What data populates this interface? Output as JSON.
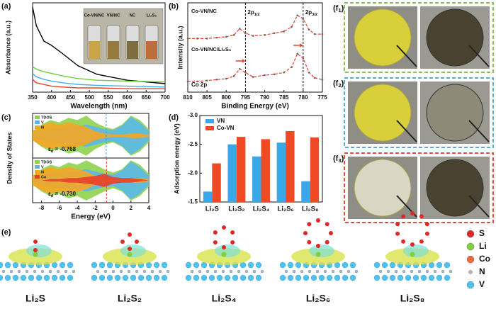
{
  "panels": {
    "a": "(a)",
    "b": "(b)",
    "c": "(c)",
    "d": "(d)",
    "e": "(e)",
    "f": [
      {
        "main": "(f",
        "sub": "1",
        "end": ")",
        "color": "#8cc152"
      },
      {
        "main": "(f",
        "sub": "2",
        "end": ")",
        "color": "#5aa9d6"
      },
      {
        "main": "(f",
        "sub": "3",
        "end": ")",
        "color": "#e0503a"
      }
    ]
  },
  "chart_data": [
    {
      "type": "line",
      "xlabel": "Wavelength (nm)",
      "ylabel": "Absorbance (a.u.)",
      "x": [
        350,
        360,
        380,
        400,
        430,
        470,
        520,
        600,
        700
      ],
      "xlim": [
        350,
        700
      ],
      "xticks": [
        350,
        400,
        450,
        500,
        550,
        600,
        650,
        700
      ],
      "ylim": [
        0,
        1.05
      ],
      "series": [
        {
          "name": "Li₂S₆",
          "color": "#000000",
          "values": [
            1.0,
            0.78,
            0.6,
            0.55,
            0.45,
            0.31,
            0.21,
            0.14,
            0.1
          ]
        },
        {
          "name": "NC",
          "color": "#6ccf3a",
          "values": [
            0.3,
            0.27,
            0.24,
            0.22,
            0.19,
            0.16,
            0.14,
            0.13,
            0.12
          ]
        },
        {
          "name": "VN/NC",
          "color": "#3ab0e6",
          "values": [
            0.22,
            0.18,
            0.15,
            0.13,
            0.11,
            0.09,
            0.08,
            0.07,
            0.06
          ]
        },
        {
          "name": "Co-VN/NC",
          "color": "#e8402a",
          "values": [
            0.15,
            0.11,
            0.09,
            0.07,
            0.06,
            0.05,
            0.05,
            0.04,
            0.04
          ]
        }
      ]
    },
    {
      "type": "xps",
      "xlabel": "Binding Energy (eV)",
      "ylabel": "Intensity (a.u.)",
      "annotation": "Co 2p",
      "x": [
        810,
        807.5,
        805,
        802.5,
        800,
        798,
        796.5,
        795,
        793,
        790,
        787.5,
        785,
        783,
        781.5,
        780,
        778.5,
        777,
        775
      ],
      "xlim": [
        810,
        775
      ],
      "xticks": [
        810,
        805,
        800,
        795,
        790,
        785,
        780,
        775
      ],
      "ylim": [
        0,
        1
      ],
      "series": [
        {
          "name": "Co-VN/NC",
          "color": "#e8402a",
          "values": [
            0.6,
            0.6,
            0.6,
            0.61,
            0.62,
            0.64,
            0.71,
            0.66,
            0.63,
            0.64,
            0.66,
            0.68,
            0.73,
            0.86,
            0.82,
            0.7,
            0.65,
            0.65
          ]
        },
        {
          "name": "Co-VN/NC/Li₂S₆",
          "color": "#e8402a",
          "values": [
            0.12,
            0.12,
            0.13,
            0.14,
            0.15,
            0.18,
            0.26,
            0.22,
            0.17,
            0.19,
            0.2,
            0.22,
            0.28,
            0.43,
            0.38,
            0.22,
            0.16,
            0.14
          ]
        }
      ],
      "ref_lines": [
        795,
        780
      ],
      "peak_labels": [
        {
          "main": "2p",
          "sub": "1/2"
        },
        {
          "main": "2p",
          "sub": "3/2"
        }
      ]
    },
    {
      "type": "dos",
      "xlabel": "Energy (eV)",
      "ylabel": "Density of States",
      "xlim": [
        -9,
        4
      ],
      "xticks": [
        -8,
        -6,
        -4,
        -2,
        0,
        2,
        4
      ],
      "x": [
        -9,
        -8,
        -7,
        -6,
        -5,
        -4,
        -3,
        -2,
        -1,
        0,
        1,
        2,
        3,
        4
      ],
      "panels": [
        {
          "ylim": [
            -1,
            1
          ],
          "ed": {
            "symbol": "ε",
            "sub": "d",
            "label": " = -0.768",
            "value": -0.768,
            "color": "#2aa7d8"
          },
          "series": [
            {
              "name": "TDOS",
              "color": "#8fd14f",
              "values": [
                0.2,
                0.5,
                0.7,
                0.6,
                0.8,
                0.7,
                0.9,
                0.6,
                0.4,
                0.3,
                0.5,
                0.9,
                0.7,
                0.3
              ]
            },
            {
              "name": "V",
              "color": "#5bb8e8",
              "values": [
                0.1,
                0.2,
                0.3,
                0.3,
                0.4,
                0.4,
                0.5,
                0.4,
                0.3,
                0.25,
                0.45,
                0.85,
                0.6,
                0.2
              ]
            },
            {
              "name": "N",
              "color": "#f5a623",
              "values": [
                0.2,
                0.45,
                0.6,
                0.5,
                0.6,
                0.5,
                0.4,
                0.2,
                0.1,
                0.05,
                0.05,
                0.1,
                0.1,
                0.05
              ]
            }
          ]
        },
        {
          "ylim": [
            -1,
            1
          ],
          "ed": {
            "symbol": "ε",
            "sub": "d",
            "label": " = -0.730",
            "value": -0.73,
            "color": "#e8402a"
          },
          "series": [
            {
              "name": "TDOS",
              "color": "#8fd14f",
              "values": [
                0.2,
                0.5,
                0.7,
                0.6,
                0.8,
                0.7,
                0.9,
                0.7,
                0.5,
                0.35,
                0.5,
                0.9,
                0.7,
                0.3
              ]
            },
            {
              "name": "V",
              "color": "#5bb8e8",
              "values": [
                0.1,
                0.2,
                0.3,
                0.3,
                0.4,
                0.4,
                0.5,
                0.4,
                0.3,
                0.25,
                0.45,
                0.85,
                0.6,
                0.2
              ]
            },
            {
              "name": "N",
              "color": "#f5a623",
              "values": [
                0.2,
                0.45,
                0.6,
                0.5,
                0.6,
                0.5,
                0.4,
                0.2,
                0.1,
                0.05,
                0.05,
                0.1,
                0.1,
                0.05
              ]
            },
            {
              "name": "Co",
              "color": "#e8402a",
              "values": [
                0,
                0,
                0.05,
                0.05,
                0.1,
                0.1,
                0.15,
                0.2,
                0.3,
                0.15,
                0.1,
                0.1,
                0.05,
                0
              ]
            }
          ]
        }
      ]
    },
    {
      "type": "bar",
      "ylabel": "Adsorption energy (eV)",
      "categories": [
        "Li₂S",
        "Li₂S₂",
        "Li₂S₄",
        "Li₂S₆",
        "Li₂S₈"
      ],
      "ylim": [
        -1.5,
        -3.0
      ],
      "yticks": [
        {
          "value": -3,
          "label": "-3.0"
        },
        {
          "value": -2.5,
          "label": "-2.5"
        },
        {
          "value": -2,
          "label": "-2.0"
        },
        {
          "value": -1.5,
          "label": "-1.5"
        }
      ],
      "legend": "upper left",
      "series": [
        {
          "name": "VN",
          "color": "#3aa8e8",
          "values": [
            -1.68,
            -2.5,
            -2.29,
            -2.53,
            -1.86
          ]
        },
        {
          "name": "Co-VN",
          "color": "#f04a24",
          "values": [
            -2.17,
            -2.63,
            -2.59,
            -2.73,
            -2.62
          ]
        }
      ]
    }
  ],
  "structures": {
    "labels": [
      "Li₂S",
      "Li₂S₂",
      "Li₂S₄",
      "Li₂S₆",
      "Li₂S₈"
    ],
    "legend": [
      {
        "name": "S",
        "color": "#e02828"
      },
      {
        "name": "Li",
        "color": "#7fd13b"
      },
      {
        "name": "Co",
        "color": "#f26a3c"
      },
      {
        "name": "N",
        "color": "#b8b8b8"
      },
      {
        "name": "V",
        "color": "#4fc3f0"
      }
    ]
  }
}
